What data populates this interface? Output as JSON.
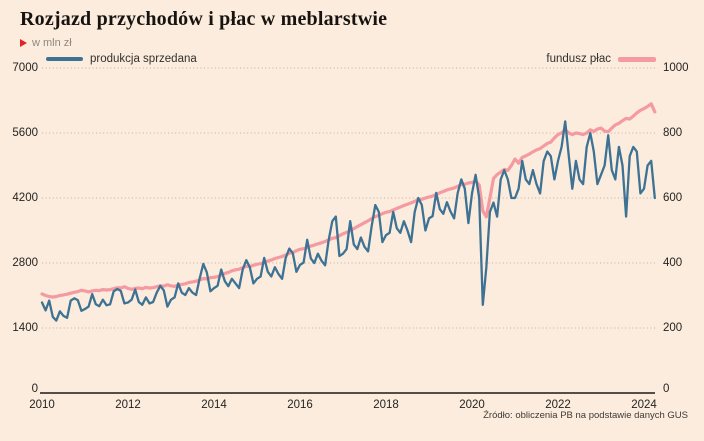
{
  "header": {
    "title": "Rozjazd przychodów i płac w meblarstwie",
    "unit_label": "w mln zł"
  },
  "legend": {
    "left_label": "produkcja sprzedana",
    "right_label": "fundusz płac"
  },
  "source_note": "Źródło: obliczenia PB na podstawie danych GUS",
  "colors": {
    "background": "#fbecdd",
    "produkcja": "#3d7294",
    "fundusz": "#f59aa0",
    "grid": "#bfb2a4",
    "axis": "#1c1a18",
    "accent_red": "#e32226"
  },
  "chart_data": {
    "type": "line",
    "title": "Rozjazd przychodów i płac w meblarstwie",
    "unit": "w mln zł",
    "frequency": "monthly",
    "x_start": "2010-01",
    "x_end": "2024-04",
    "x_tick_years": [
      2010,
      2012,
      2014,
      2016,
      2018,
      2020,
      2022,
      2024
    ],
    "grid": "horizontal-dotted",
    "legend_position": "top",
    "left_axis": {
      "series": "produkcja sprzedana",
      "min": 0,
      "max": 7000,
      "ticks": [
        0,
        1400,
        2800,
        4200,
        5600,
        7000
      ]
    },
    "right_axis": {
      "series": "fundusz płac",
      "min": 0,
      "max": 1000,
      "ticks": [
        0,
        200,
        400,
        600,
        800,
        1000
      ]
    },
    "series": [
      {
        "name": "produkcja sprzedana",
        "axis": "left",
        "color": "#3d7294",
        "values": [
          1950,
          1780,
          1990,
          1640,
          1560,
          1760,
          1660,
          1620,
          1990,
          2040,
          2000,
          1770,
          1810,
          1860,
          2130,
          1910,
          1870,
          2010,
          1890,
          1910,
          2190,
          2240,
          2200,
          1930,
          1950,
          2010,
          2230,
          1960,
          1900,
          2060,
          1930,
          1960,
          2160,
          2310,
          2210,
          1860,
          2010,
          2060,
          2360,
          2160,
          2110,
          2260,
          2160,
          2110,
          2470,
          2780,
          2600,
          2190,
          2260,
          2310,
          2660,
          2410,
          2300,
          2460,
          2360,
          2260,
          2660,
          2860,
          2710,
          2360,
          2460,
          2510,
          2910,
          2610,
          2510,
          2710,
          2560,
          2460,
          2910,
          3110,
          3010,
          2610,
          2760,
          2810,
          3300,
          2900,
          2800,
          3000,
          2850,
          2750,
          3300,
          3700,
          3800,
          2950,
          3000,
          3100,
          3700,
          3200,
          3100,
          3350,
          3150,
          3050,
          3600,
          4050,
          3900,
          3250,
          3400,
          3450,
          3900,
          3550,
          3450,
          3700,
          3500,
          3250,
          3900,
          4200,
          4050,
          3500,
          3760,
          3810,
          4310,
          3960,
          3860,
          4110,
          3910,
          3760,
          4310,
          4600,
          4400,
          3660,
          4300,
          4700,
          4200,
          1900,
          2700,
          3900,
          4100,
          3800,
          4600,
          4800,
          4600,
          4200,
          4200,
          4400,
          5000,
          4600,
          4500,
          4800,
          4500,
          4300,
          5000,
          5200,
          5100,
          4600,
          5000,
          5300,
          5850,
          5100,
          4400,
          5000,
          4600,
          4500,
          5300,
          5600,
          5200,
          4500,
          4700,
          4900,
          5550,
          4800,
          4600,
          5300,
          4900,
          3800,
          5100,
          5300,
          5200,
          4300,
          4400,
          4900,
          5000,
          4200
        ]
      },
      {
        "name": "fundusz płac",
        "axis": "right",
        "color": "#f59aa0",
        "values": [
          305,
          300,
          297,
          295,
          297,
          300,
          302,
          304,
          307,
          310,
          312,
          316,
          314,
          311,
          314,
          316,
          315,
          318,
          317,
          318,
          321,
          324,
          323,
          327,
          322,
          319,
          322,
          323,
          321,
          325,
          323,
          324,
          327,
          330,
          329,
          333,
          330,
          328,
          332,
          334,
          336,
          340,
          342,
          344,
          348,
          352,
          351,
          355,
          356,
          358,
          363,
          368,
          371,
          376,
          379,
          381,
          386,
          390,
          389,
          393,
          396,
          398,
          402,
          406,
          409,
          414,
          417,
          420,
          425,
          430,
          432,
          438,
          442,
          444,
          448,
          452,
          455,
          459,
          462,
          466,
          471,
          476,
          478,
          484,
          490,
          494,
          500,
          506,
          512,
          518,
          524,
          530,
          537,
          543,
          546,
          552,
          556,
          558,
          563,
          568,
          572,
          577,
          581,
          585,
          590,
          595,
          596,
          600,
          603,
          606,
          611,
          616,
          620,
          625,
          628,
          631,
          636,
          641,
          642,
          646,
          648,
          652,
          640,
          560,
          542,
          600,
          660,
          672,
          680,
          688,
          685,
          700,
          720,
          707,
          725,
          730,
          735,
          742,
          748,
          752,
          760,
          768,
          772,
          785,
          795,
          800,
          810,
          800,
          795,
          800,
          798,
          795,
          800,
          810,
          805,
          812,
          815,
          806,
          804,
          815,
          825,
          830,
          838,
          845,
          843,
          852,
          862,
          870,
          875,
          882,
          890,
          865
        ]
      }
    ]
  }
}
